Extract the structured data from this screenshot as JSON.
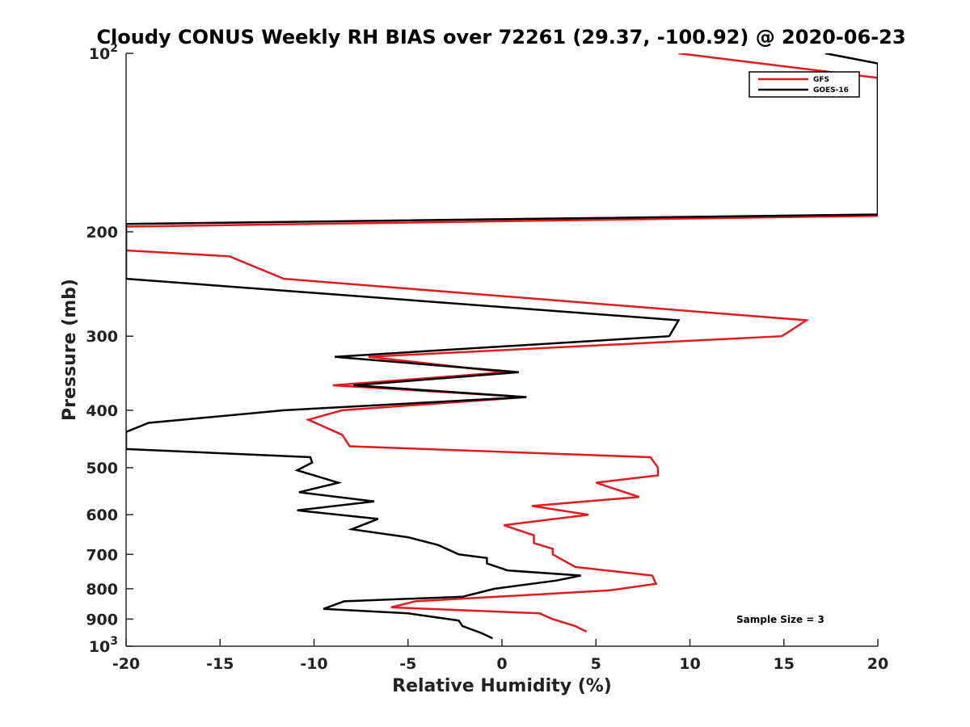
{
  "chart_data": {
    "type": "line",
    "title": "Cloudy CONUS Weekly RH BIAS over 72261 (29.37, -100.92) @ 2020-06-23",
    "xlabel": "Relative Humidity (%)",
    "ylabel": "Pressure (mb)",
    "xlim": [
      -20,
      20
    ],
    "ylim": [
      100,
      1000
    ],
    "y_scale": "log",
    "y_reversed": true,
    "x_ticks": [
      -20,
      -15,
      -10,
      -5,
      0,
      5,
      10,
      15,
      20
    ],
    "x_tick_labels": [
      "-20",
      "-15",
      "-10",
      "-5",
      "0",
      "5",
      "10",
      "15",
      "20"
    ],
    "y_ticks": [
      100,
      200,
      300,
      400,
      500,
      600,
      700,
      800,
      900,
      1000
    ],
    "y_tick_labels": [
      {
        "base": "10",
        "exp": "2"
      },
      {
        "base": "200",
        "exp": ""
      },
      {
        "base": "300",
        "exp": ""
      },
      {
        "base": "400",
        "exp": ""
      },
      {
        "base": "500",
        "exp": ""
      },
      {
        "base": "600",
        "exp": ""
      },
      {
        "base": "700",
        "exp": ""
      },
      {
        "base": "800",
        "exp": ""
      },
      {
        "base": "900",
        "exp": ""
      },
      {
        "base": "10",
        "exp": "3"
      }
    ],
    "grid": false,
    "legend_position": "top-right",
    "annotation": "Sample Size = 3",
    "series": [
      {
        "name": "GFS",
        "color": "#e41a1c",
        "points": [
          [
            9.4,
            100
          ],
          [
            20,
            110
          ],
          [
            20,
            188
          ],
          [
            -20,
            196
          ],
          [
            -20,
            215
          ],
          [
            -14.5,
            220
          ],
          [
            -11.6,
            240
          ],
          [
            16.2,
            282
          ],
          [
            14.9,
            300
          ],
          [
            -7.1,
            325
          ],
          [
            0.2,
            345
          ],
          [
            -9,
            363
          ],
          [
            1.3,
            380
          ],
          [
            -8.5,
            400
          ],
          [
            -10.3,
            415
          ],
          [
            -8.5,
            440
          ],
          [
            -8.1,
            460
          ],
          [
            7.9,
            480
          ],
          [
            8.3,
            500
          ],
          [
            8.3,
            515
          ],
          [
            5,
            530
          ],
          [
            7.3,
            560
          ],
          [
            1.6,
            580
          ],
          [
            4.6,
            600
          ],
          [
            0.1,
            625
          ],
          [
            1.7,
            650
          ],
          [
            1.7,
            670
          ],
          [
            2.7,
            685
          ],
          [
            2.7,
            700
          ],
          [
            3.9,
            735
          ],
          [
            8,
            760
          ],
          [
            8.2,
            785
          ],
          [
            5.7,
            805
          ],
          [
            -4.6,
            840
          ],
          [
            -5.9,
            860
          ],
          [
            2,
            880
          ],
          [
            2.7,
            900
          ],
          [
            3.9,
            925
          ],
          [
            4.5,
            945
          ]
        ]
      },
      {
        "name": "GOES-16",
        "color": "#000000",
        "points": [
          [
            17.2,
            100
          ],
          [
            20,
            104
          ],
          [
            20,
            187
          ],
          [
            -20,
            194
          ],
          [
            -20,
            240
          ],
          [
            9.4,
            282
          ],
          [
            8.9,
            300
          ],
          [
            -8.9,
            325
          ],
          [
            0.9,
            345
          ],
          [
            -7.9,
            363
          ],
          [
            1.3,
            380
          ],
          [
            -11.6,
            400
          ],
          [
            -18.8,
            420
          ],
          [
            -20,
            435
          ],
          [
            -20,
            465
          ],
          [
            -10.2,
            480
          ],
          [
            -10.1,
            490
          ],
          [
            -10.9,
            505
          ],
          [
            -8.7,
            530
          ],
          [
            -10.8,
            550
          ],
          [
            -6.8,
            570
          ],
          [
            -10.9,
            590
          ],
          [
            -6.6,
            610
          ],
          [
            -8,
            635
          ],
          [
            -5,
            655
          ],
          [
            -3.4,
            675
          ],
          [
            -2.3,
            700
          ],
          [
            -0.8,
            710
          ],
          [
            -0.8,
            725
          ],
          [
            0.3,
            745
          ],
          [
            4.2,
            760
          ],
          [
            2.9,
            775
          ],
          [
            -0.4,
            800
          ],
          [
            -2.1,
            825
          ],
          [
            -8.4,
            840
          ],
          [
            -9.5,
            865
          ],
          [
            -5,
            880
          ],
          [
            -2.3,
            905
          ],
          [
            -2.1,
            925
          ],
          [
            -1.1,
            950
          ],
          [
            -0.5,
            970
          ]
        ]
      }
    ]
  }
}
